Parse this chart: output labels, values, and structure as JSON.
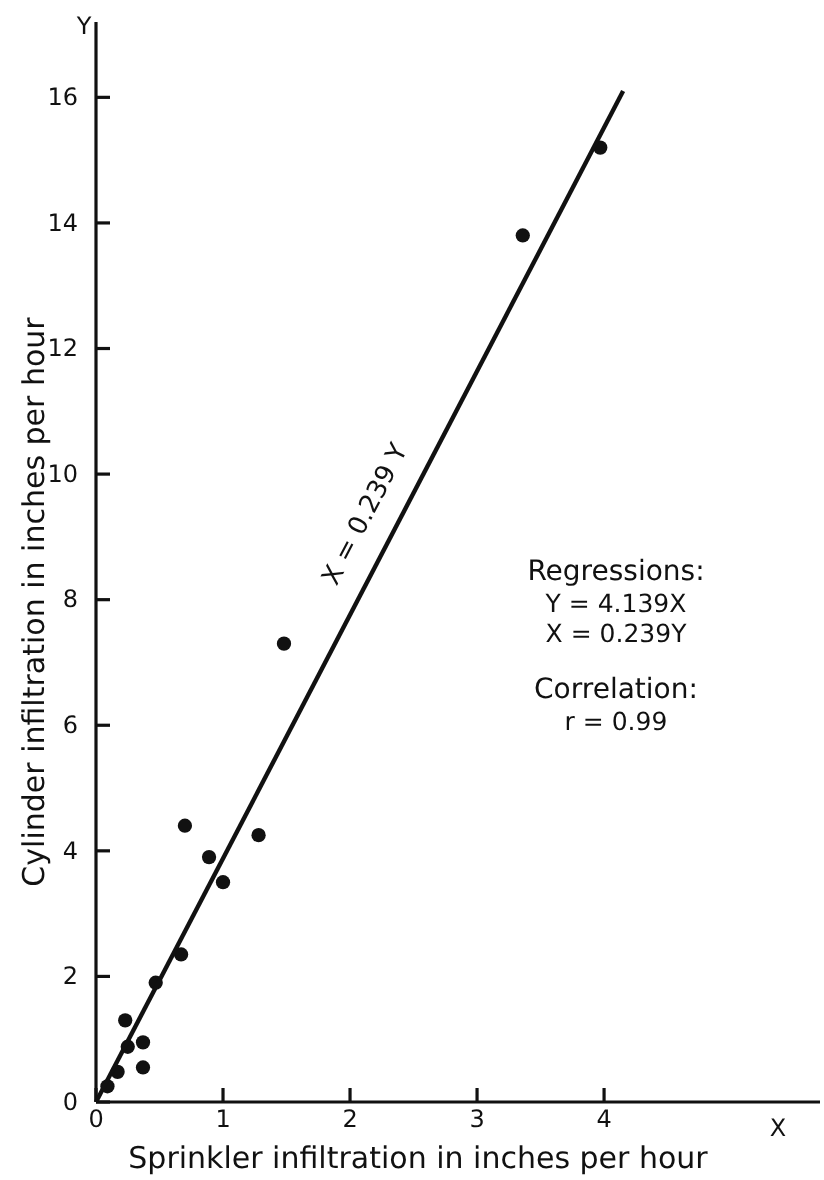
{
  "chart_data": {
    "type": "scatter",
    "xlabel": "Sprinkler infiltration in inches per hour",
    "ylabel": "Cylinder infiltration in inches per hour",
    "xlim": [
      0,
      5.7
    ],
    "ylim": [
      0,
      17.2
    ],
    "xticks": [
      0,
      1,
      2,
      3,
      4
    ],
    "yticks": [
      0,
      2,
      4,
      6,
      8,
      10,
      12,
      14,
      16
    ],
    "grid": false,
    "marker": "circle",
    "series": [
      {
        "color": "#111111",
        "x": [
          0.09,
          0.17,
          0.25,
          0.23,
          0.37,
          0.37,
          0.47,
          0.67,
          0.7,
          0.89,
          1.0,
          1.28,
          1.48,
          3.36,
          3.97
        ],
        "values": [
          0.25,
          0.48,
          0.88,
          1.3,
          0.95,
          0.55,
          1.9,
          2.35,
          4.4,
          3.9,
          3.5,
          4.25,
          7.3,
          13.8,
          15.2
        ]
      },
      {
        "type": "line",
        "color": "#111111",
        "marker": "none",
        "line_style": "solid",
        "x": [
          0,
          4.15
        ],
        "values": [
          0,
          16.1
        ]
      }
    ],
    "annotations": [
      {
        "text": "X = 0.239 Y",
        "x": 2.3,
        "y": 9.3
      },
      "Regressions:",
      "Y = 4.139X",
      "X = 0.239Y",
      "Correlation:",
      "r = 0.99",
      "X",
      "Y"
    ]
  }
}
